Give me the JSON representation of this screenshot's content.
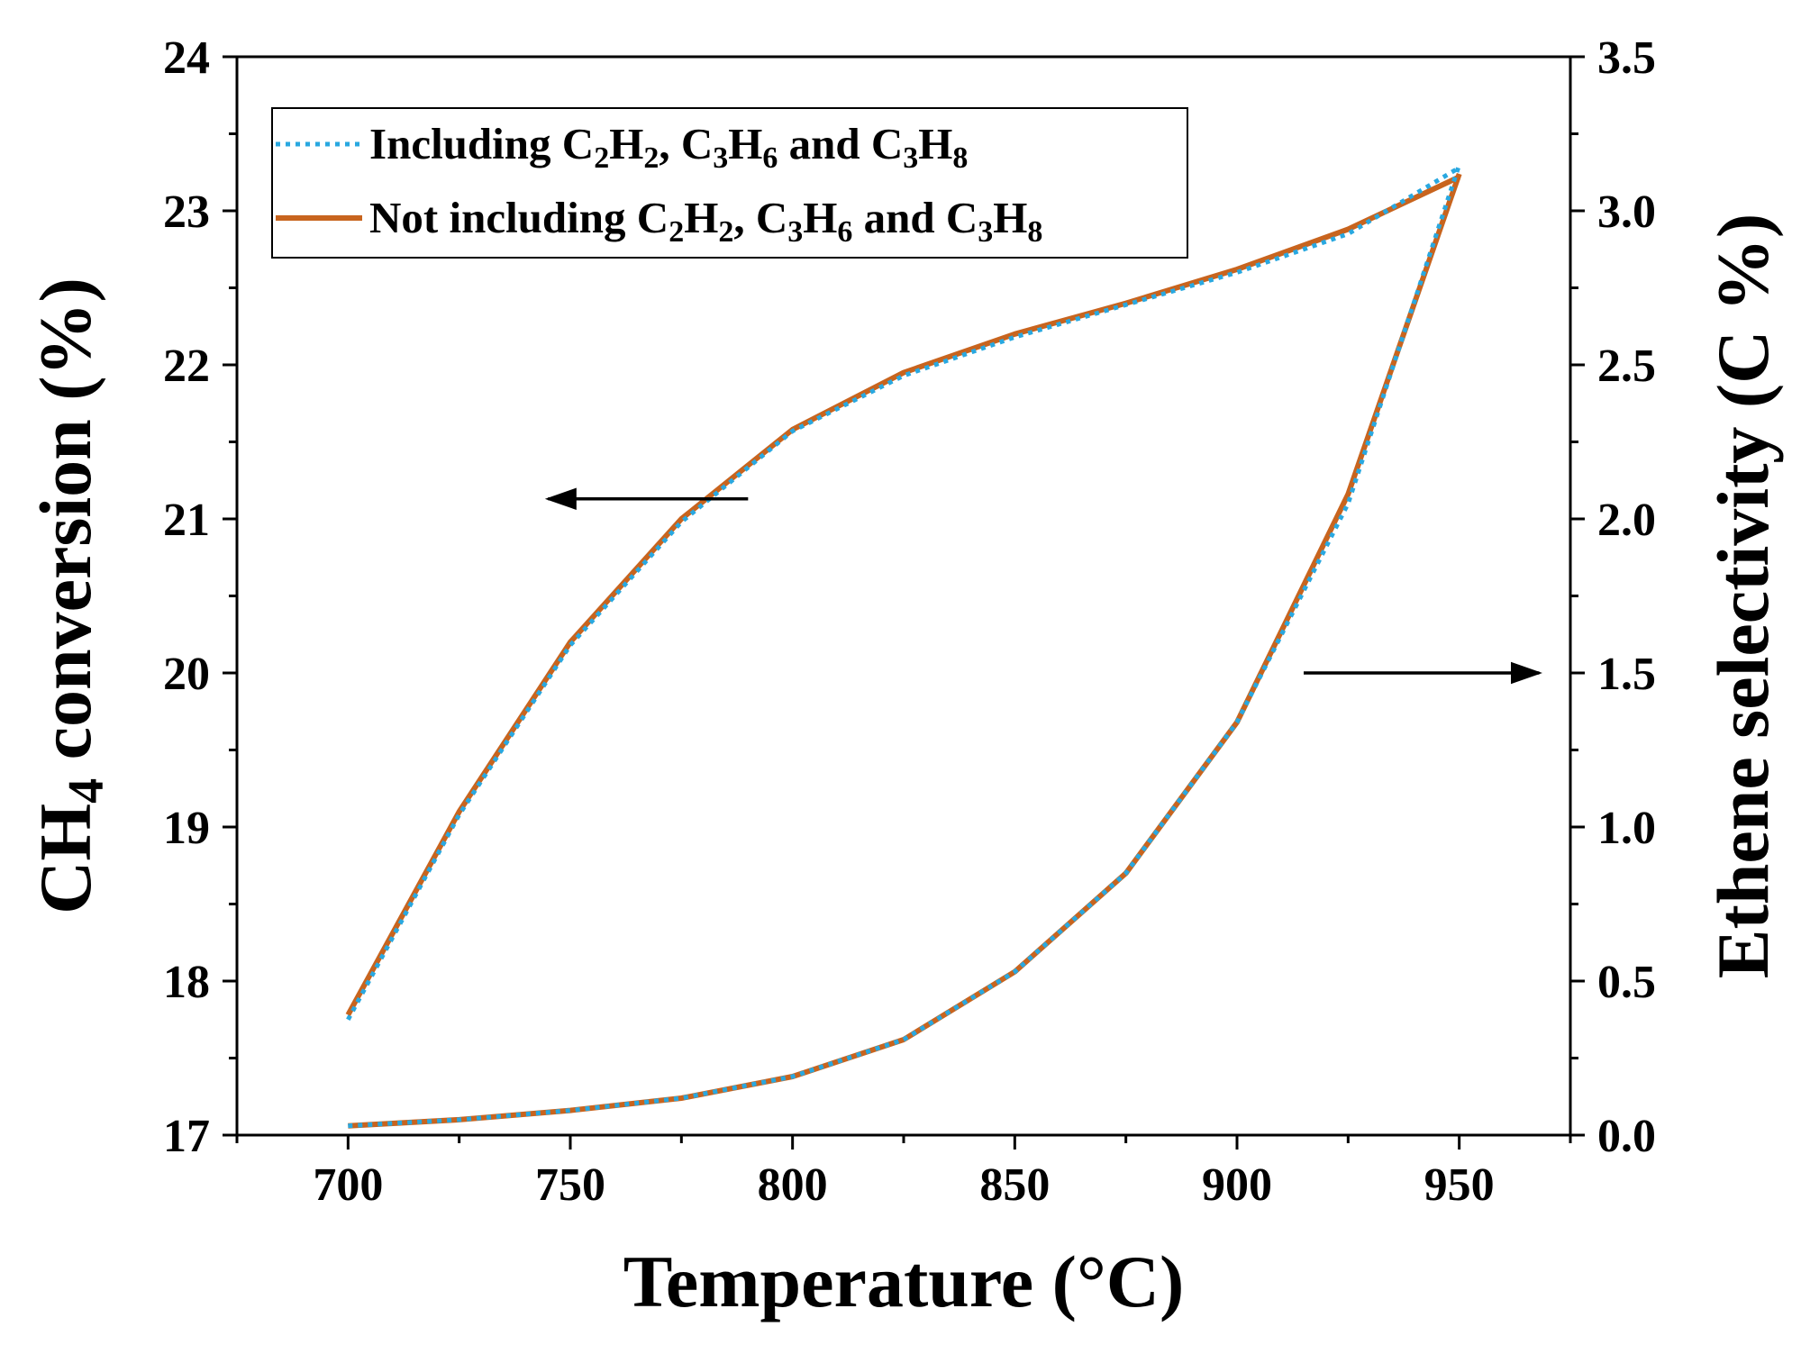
{
  "chart_data": {
    "type": "line",
    "title": "",
    "xlabel": "Temperature (°C)",
    "ylabel_left": {
      "prefix": "CH",
      "sub": "4",
      "suffix": " conversion (%)"
    },
    "ylabel_right": "Ethene selectivity (C %)",
    "xlim": [
      675,
      975
    ],
    "ylim_left": [
      17,
      24
    ],
    "ylim_right": [
      0,
      3.5
    ],
    "xticks": [
      700,
      750,
      800,
      850,
      900,
      950
    ],
    "xtick_labels": [
      "700",
      "750",
      "800",
      "850",
      "900",
      "950"
    ],
    "yticks_left": [
      17,
      18,
      19,
      20,
      21,
      22,
      23,
      24
    ],
    "ytick_labels_left": [
      "17",
      "18",
      "19",
      "20",
      "21",
      "22",
      "23",
      "24"
    ],
    "yticks_right": [
      0,
      0.5,
      1.0,
      1.5,
      2.0,
      2.5,
      3.0,
      3.5
    ],
    "ytick_labels_right": [
      "0.0",
      "0.5",
      "1.0",
      "1.5",
      "2.0",
      "2.5",
      "3.0",
      "3.5"
    ],
    "legend_position": "top-left",
    "colors": {
      "including": "#29a8e0",
      "not_including": "#c8641e",
      "axis": "#000000"
    },
    "legend": [
      {
        "key": "including",
        "parts": [
          "Including C",
          "2",
          "H",
          "2",
          ", C",
          "3",
          "H",
          "6",
          " and C",
          "3",
          "H",
          "8"
        ]
      },
      {
        "key": "not_including",
        "parts": [
          "Not including C",
          "2",
          "H",
          "2",
          ", C",
          "3",
          "H",
          "6",
          " and C",
          "3",
          "H",
          "8"
        ]
      }
    ],
    "x": [
      700,
      725,
      750,
      775,
      800,
      825,
      850,
      875,
      900,
      925,
      950
    ],
    "series": [
      {
        "name": "Including C2H2, C3H6 and C3H8 — CH4 conversion",
        "key": "including",
        "axis": "left",
        "values": [
          17.75,
          19.08,
          20.18,
          20.98,
          21.57,
          21.93,
          22.18,
          22.39,
          22.6,
          22.85,
          23.28
        ]
      },
      {
        "name": "Not including C2H2, C3H6 and C3H8 — CH4 conversion",
        "key": "not_including",
        "axis": "left",
        "values": [
          17.78,
          19.1,
          20.2,
          21.0,
          21.58,
          21.95,
          22.2,
          22.4,
          22.62,
          22.88,
          23.22
        ]
      },
      {
        "name": "Including C2H2, C3H6 and C3H8 — Ethene selectivity",
        "key": "including",
        "axis": "right",
        "values": [
          0.03,
          0.05,
          0.08,
          0.12,
          0.19,
          0.31,
          0.53,
          0.85,
          1.34,
          2.05,
          3.15
        ]
      },
      {
        "name": "Not including C2H2, C3H6 and C3H8 — Ethene selectivity",
        "key": "not_including",
        "axis": "right",
        "values": [
          0.03,
          0.05,
          0.08,
          0.12,
          0.19,
          0.31,
          0.53,
          0.85,
          1.34,
          2.08,
          3.12
        ]
      }
    ],
    "annotations": [
      {
        "name": "arrow-to-left-axis",
        "direction": "left",
        "x_from": 790,
        "x_to": 745,
        "y_left": 21.13
      },
      {
        "name": "arrow-to-right-axis",
        "direction": "right",
        "x_from": 915,
        "x_to": 968,
        "y_left": 20.0
      }
    ]
  }
}
